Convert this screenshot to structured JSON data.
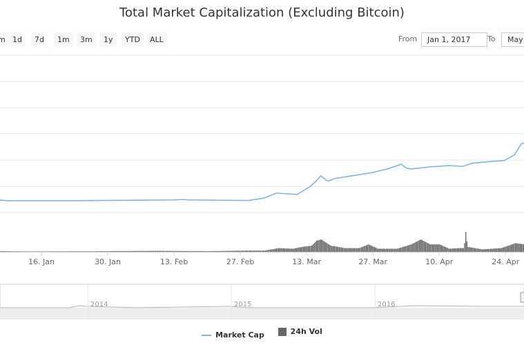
{
  "chart_data": {
    "type": "line",
    "title": "Total Market Capitalization (Excluding Bitcoin)",
    "x_unit": "day of 2017 (0 = 1 Jan)",
    "x_ticks": [
      {
        "day": 15,
        "label": "16. Jan"
      },
      {
        "day": 29,
        "label": "30. Jan"
      },
      {
        "day": 43,
        "label": "13. Feb"
      },
      {
        "day": 57,
        "label": "27. Feb"
      },
      {
        "day": 71,
        "label": "13. Mar"
      },
      {
        "day": 85,
        "label": "27. Mar"
      },
      {
        "day": 99,
        "label": "10. Apr"
      },
      {
        "day": 113,
        "label": "24. Apr"
      }
    ],
    "series": [
      {
        "name": "Market Cap",
        "color": "#7cb5ec",
        "points": [
          [
            6,
            1.48
          ],
          [
            8,
            1.45
          ],
          [
            20,
            1.45
          ],
          [
            35,
            1.47
          ],
          [
            43,
            1.48
          ],
          [
            45,
            1.5
          ],
          [
            46,
            1.48
          ],
          [
            58.7,
            1.46
          ],
          [
            62,
            1.55
          ],
          [
            64.6,
            1.74
          ],
          [
            69,
            1.69
          ],
          [
            71.8,
            2.0
          ],
          [
            73,
            2.2
          ],
          [
            74,
            2.4
          ],
          [
            75,
            2.25
          ],
          [
            75.5,
            2.2
          ],
          [
            77,
            2.3
          ],
          [
            80.6,
            2.4
          ],
          [
            85,
            2.53
          ],
          [
            88,
            2.66
          ],
          [
            91,
            2.84
          ],
          [
            92,
            2.7
          ],
          [
            93,
            2.66
          ],
          [
            97,
            2.74
          ],
          [
            101,
            2.79
          ],
          [
            104,
            2.76
          ],
          [
            106,
            2.88
          ],
          [
            108.3,
            2.92
          ],
          [
            110,
            2.95
          ],
          [
            112.7,
            2.98
          ],
          [
            114.9,
            3.2
          ],
          [
            116.3,
            3.62
          ],
          [
            117,
            3.66
          ]
        ]
      },
      {
        "name": "24h Vol",
        "color": "#666666",
        "points": [
          [
            6,
            0.05
          ],
          [
            12,
            0.03
          ],
          [
            25,
            0.04
          ],
          [
            32,
            0.06
          ],
          [
            40,
            0.08
          ],
          [
            50,
            0.05
          ],
          [
            58,
            0.1
          ],
          [
            62,
            0.1
          ],
          [
            65,
            0.3
          ],
          [
            68,
            0.25
          ],
          [
            70,
            0.4
          ],
          [
            72,
            0.5
          ],
          [
            73,
            0.9
          ],
          [
            74,
            1.0
          ],
          [
            76,
            0.5
          ],
          [
            79,
            0.3
          ],
          [
            82,
            0.3
          ],
          [
            84,
            0.6
          ],
          [
            86,
            0.25
          ],
          [
            90,
            0.25
          ],
          [
            93,
            0.6
          ],
          [
            95,
            1.0
          ],
          [
            97,
            0.6
          ],
          [
            99,
            0.6
          ],
          [
            101,
            0.25
          ],
          [
            103,
            0.3
          ],
          [
            104.2,
            0.3
          ],
          [
            104.4,
            1.9
          ],
          [
            104.9,
            0.4
          ],
          [
            108,
            0.2
          ],
          [
            112,
            0.3
          ],
          [
            115,
            0.7
          ],
          [
            117,
            0.6
          ]
        ]
      }
    ],
    "navigator": {
      "labels": [
        "2014",
        "2015",
        "2016"
      ]
    },
    "legend": [
      "Market Cap",
      "24h Vol"
    ]
  },
  "range_buttons": [
    "m",
    "1d",
    "7d",
    "1m",
    "3m",
    "1y",
    "YTD",
    "ALL"
  ],
  "from_label": "From",
  "from_value": "Jan 1, 2017",
  "to_label": "To",
  "to_value": "May"
}
